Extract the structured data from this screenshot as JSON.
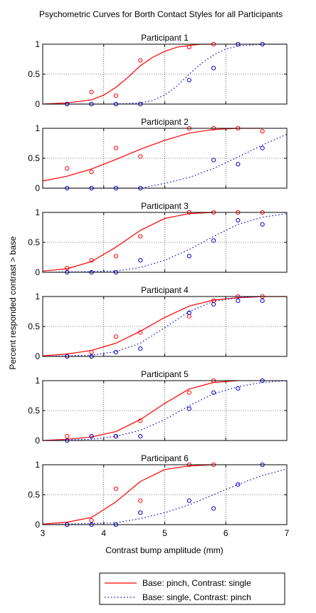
{
  "figure": {
    "title": "Psychometric Curves for Borth Contact Styles for all Participants",
    "ylabel": "Percent responded contrast > base",
    "xlabel": "Contrast bump amplitude (mm)",
    "legend": [
      "Base: pinch, Contrast: single",
      "Base: single, Contrast: pinch"
    ],
    "colors": {
      "pinch": "#ff0000",
      "single": "#0000cc"
    }
  },
  "chart_data": [
    {
      "type": "line",
      "title": "Participant 1",
      "xlim": [
        3,
        7
      ],
      "ylim": [
        0,
        1
      ],
      "xticks": [
        3,
        4,
        5,
        6,
        7
      ],
      "yticks": [
        0,
        0.5,
        1
      ],
      "grid": true,
      "series": [
        {
          "name": "Base: pinch, Contrast: single",
          "style": "solid",
          "x": [
            3.0,
            3.4,
            3.8,
            4.0,
            4.2,
            4.4,
            4.6,
            4.8,
            5.0,
            5.2,
            5.4,
            5.6,
            5.8
          ],
          "y": [
            0.0,
            0.02,
            0.07,
            0.15,
            0.28,
            0.45,
            0.64,
            0.78,
            0.88,
            0.95,
            0.98,
            1.0,
            1.0
          ]
        },
        {
          "name": "Base: single, Contrast: pinch",
          "style": "dotted",
          "x": [
            3.0,
            4.2,
            4.6,
            4.8,
            5.0,
            5.2,
            5.4,
            5.6,
            5.8,
            6.0,
            6.2,
            6.6,
            7.0
          ],
          "y": [
            0.0,
            0.0,
            0.02,
            0.06,
            0.15,
            0.3,
            0.5,
            0.68,
            0.82,
            0.92,
            0.97,
            1.0,
            1.0
          ]
        }
      ],
      "points": [
        {
          "series": "Base: pinch, Contrast: single",
          "x": [
            3.4,
            3.8,
            4.2,
            4.6,
            5.4,
            5.8
          ],
          "y": [
            0.0,
            0.2,
            0.14,
            0.73,
            0.95,
            1.0
          ]
        },
        {
          "series": "Base: single, Contrast: pinch",
          "x": [
            3.4,
            3.8,
            4.2,
            4.6,
            5.4,
            5.8,
            6.2,
            6.6
          ],
          "y": [
            0.0,
            0.0,
            0.0,
            0.0,
            0.4,
            0.6,
            1.0,
            1.0
          ]
        }
      ]
    },
    {
      "type": "line",
      "title": "Participant 2",
      "xlim": [
        3,
        7
      ],
      "ylim": [
        0,
        1
      ],
      "xticks": [
        3,
        4,
        5,
        6,
        7
      ],
      "yticks": [
        0,
        0.5,
        1
      ],
      "grid": true,
      "series": [
        {
          "name": "Base: pinch, Contrast: single",
          "style": "solid",
          "x": [
            3.0,
            3.4,
            3.8,
            4.2,
            4.6,
            5.0,
            5.4,
            5.8,
            6.2,
            6.6
          ],
          "y": [
            0.12,
            0.2,
            0.32,
            0.48,
            0.65,
            0.8,
            0.92,
            0.98,
            1.0,
            1.0
          ]
        },
        {
          "name": "Base: single, Contrast: pinch",
          "style": "dotted",
          "x": [
            3.0,
            4.6,
            5.0,
            5.4,
            5.8,
            6.2,
            6.6,
            7.0
          ],
          "y": [
            0.0,
            0.0,
            0.08,
            0.18,
            0.33,
            0.52,
            0.72,
            0.9
          ]
        }
      ],
      "points": [
        {
          "series": "Base: pinch, Contrast: single",
          "x": [
            3.4,
            3.8,
            4.2,
            4.6,
            5.4,
            5.8,
            6.2,
            6.6
          ],
          "y": [
            0.33,
            0.27,
            0.67,
            0.53,
            1.0,
            1.0,
            1.0,
            0.95
          ]
        },
        {
          "series": "Base: single, Contrast: pinch",
          "x": [
            3.4,
            3.8,
            4.2,
            4.6,
            5.8,
            6.2,
            6.6
          ],
          "y": [
            0.0,
            0.0,
            0.0,
            0.0,
            0.47,
            0.4,
            0.67
          ]
        }
      ]
    },
    {
      "type": "line",
      "title": "Participant 3",
      "xlim": [
        3,
        7
      ],
      "ylim": [
        0,
        1
      ],
      "xticks": [
        3,
        4,
        5,
        6,
        7
      ],
      "yticks": [
        0,
        0.5,
        1
      ],
      "grid": true,
      "series": [
        {
          "name": "Base: pinch, Contrast: single",
          "style": "solid",
          "x": [
            3.0,
            3.4,
            3.8,
            4.2,
            4.6,
            5.0,
            5.4,
            5.8
          ],
          "y": [
            0.02,
            0.06,
            0.18,
            0.42,
            0.7,
            0.9,
            0.98,
            1.0
          ]
        },
        {
          "name": "Base: single, Contrast: pinch",
          "style": "dotted",
          "x": [
            3.0,
            4.2,
            4.6,
            5.0,
            5.4,
            5.8,
            6.2,
            6.6,
            7.0
          ],
          "y": [
            0.0,
            0.02,
            0.08,
            0.2,
            0.38,
            0.6,
            0.8,
            0.92,
            0.98
          ]
        }
      ],
      "points": [
        {
          "series": "Base: pinch, Contrast: single",
          "x": [
            3.4,
            3.8,
            4.2,
            4.6,
            5.4,
            5.8,
            6.2,
            6.6
          ],
          "y": [
            0.07,
            0.2,
            0.27,
            0.6,
            1.0,
            1.0,
            1.0,
            1.0
          ]
        },
        {
          "series": "Base: single, Contrast: pinch",
          "x": [
            3.4,
            3.8,
            4.2,
            4.6,
            5.4,
            5.8,
            6.2,
            6.6
          ],
          "y": [
            0.0,
            0.0,
            0.0,
            0.2,
            0.27,
            0.53,
            0.87,
            0.8
          ]
        }
      ]
    },
    {
      "type": "line",
      "title": "Participant 4",
      "xlim": [
        3,
        7
      ],
      "ylim": [
        0,
        1
      ],
      "xticks": [
        3,
        4,
        5,
        6,
        7
      ],
      "yticks": [
        0,
        0.5,
        1
      ],
      "grid": true,
      "series": [
        {
          "name": "Base: pinch, Contrast: single",
          "style": "solid",
          "x": [
            3.0,
            3.4,
            3.8,
            4.2,
            4.6,
            5.0,
            5.4,
            5.8,
            6.2,
            6.6,
            7.0
          ],
          "y": [
            0.01,
            0.04,
            0.1,
            0.22,
            0.42,
            0.65,
            0.84,
            0.94,
            0.98,
            1.0,
            1.0
          ]
        },
        {
          "name": "Base: single, Contrast: pinch",
          "style": "dotted",
          "x": [
            3.0,
            3.8,
            4.2,
            4.6,
            5.0,
            5.4,
            5.8,
            6.2,
            6.6
          ],
          "y": [
            0.0,
            0.02,
            0.08,
            0.22,
            0.48,
            0.75,
            0.92,
            0.98,
            1.0
          ]
        }
      ],
      "points": [
        {
          "series": "Base: pinch, Contrast: single",
          "x": [
            3.4,
            3.8,
            4.2,
            4.6,
            5.4,
            5.8,
            6.2,
            6.6
          ],
          "y": [
            0.0,
            0.07,
            0.33,
            0.4,
            0.67,
            0.93,
            1.0,
            1.0
          ]
        },
        {
          "series": "Base: single, Contrast: pinch",
          "x": [
            3.4,
            3.8,
            4.2,
            4.6,
            5.4,
            5.8,
            6.2,
            6.6
          ],
          "y": [
            0.0,
            0.0,
            0.07,
            0.13,
            0.73,
            0.87,
            0.93,
            0.93
          ]
        }
      ]
    },
    {
      "type": "line",
      "title": "Participant 5",
      "xlim": [
        3,
        7
      ],
      "ylim": [
        0,
        1
      ],
      "xticks": [
        3,
        4,
        5,
        6,
        7
      ],
      "yticks": [
        0,
        0.5,
        1
      ],
      "grid": true,
      "series": [
        {
          "name": "Base: pinch, Contrast: single",
          "style": "solid",
          "x": [
            3.0,
            3.4,
            3.8,
            4.2,
            4.6,
            5.0,
            5.4,
            5.8,
            6.2
          ],
          "y": [
            0.0,
            0.02,
            0.06,
            0.15,
            0.35,
            0.62,
            0.86,
            0.97,
            1.0
          ]
        },
        {
          "name": "Base: single, Contrast: pinch",
          "style": "dotted",
          "x": [
            3.0,
            3.8,
            4.2,
            4.6,
            5.0,
            5.4,
            5.8,
            6.2,
            6.6,
            7.0
          ],
          "y": [
            0.0,
            0.02,
            0.07,
            0.17,
            0.35,
            0.58,
            0.78,
            0.9,
            0.97,
            1.0
          ]
        }
      ],
      "points": [
        {
          "series": "Base: pinch, Contrast: single",
          "x": [
            3.4,
            3.8,
            4.2,
            4.6,
            5.4,
            5.8
          ],
          "y": [
            0.07,
            0.07,
            0.07,
            0.33,
            0.8,
            1.0
          ]
        },
        {
          "series": "Base: single, Contrast: pinch",
          "x": [
            3.4,
            3.8,
            4.2,
            4.6,
            5.4,
            5.8,
            6.2,
            6.6
          ],
          "y": [
            0.0,
            0.07,
            0.07,
            0.07,
            0.53,
            0.8,
            0.87,
            1.0
          ]
        }
      ]
    },
    {
      "type": "line",
      "title": "Participant 6",
      "xlim": [
        3,
        7
      ],
      "ylim": [
        0,
        1
      ],
      "xticks": [
        3,
        4,
        5,
        6,
        7
      ],
      "yticks": [
        0,
        0.5,
        1
      ],
      "grid": true,
      "series": [
        {
          "name": "Base: pinch, Contrast: single",
          "style": "solid",
          "x": [
            3.0,
            3.4,
            3.8,
            4.2,
            4.6,
            5.0,
            5.4,
            5.8
          ],
          "y": [
            0.01,
            0.04,
            0.12,
            0.38,
            0.72,
            0.92,
            0.98,
            1.0
          ]
        },
        {
          "name": "Base: single, Contrast: pinch",
          "style": "dotted",
          "x": [
            3.0,
            4.2,
            4.6,
            5.0,
            5.4,
            5.8,
            6.2,
            6.6,
            7.0
          ],
          "y": [
            0.0,
            0.03,
            0.1,
            0.2,
            0.33,
            0.5,
            0.67,
            0.82,
            0.93
          ]
        }
      ],
      "points": [
        {
          "series": "Base: pinch, Contrast: single",
          "x": [
            3.4,
            3.8,
            4.2,
            4.6,
            5.4,
            5.8
          ],
          "y": [
            0.0,
            0.07,
            0.6,
            0.4,
            1.0,
            1.0
          ]
        },
        {
          "series": "Base: single, Contrast: pinch",
          "x": [
            3.4,
            3.8,
            4.2,
            4.6,
            5.4,
            5.8,
            6.2,
            6.6
          ],
          "y": [
            0.0,
            0.0,
            0.0,
            0.2,
            0.4,
            0.27,
            0.67,
            1.0
          ]
        }
      ]
    }
  ]
}
